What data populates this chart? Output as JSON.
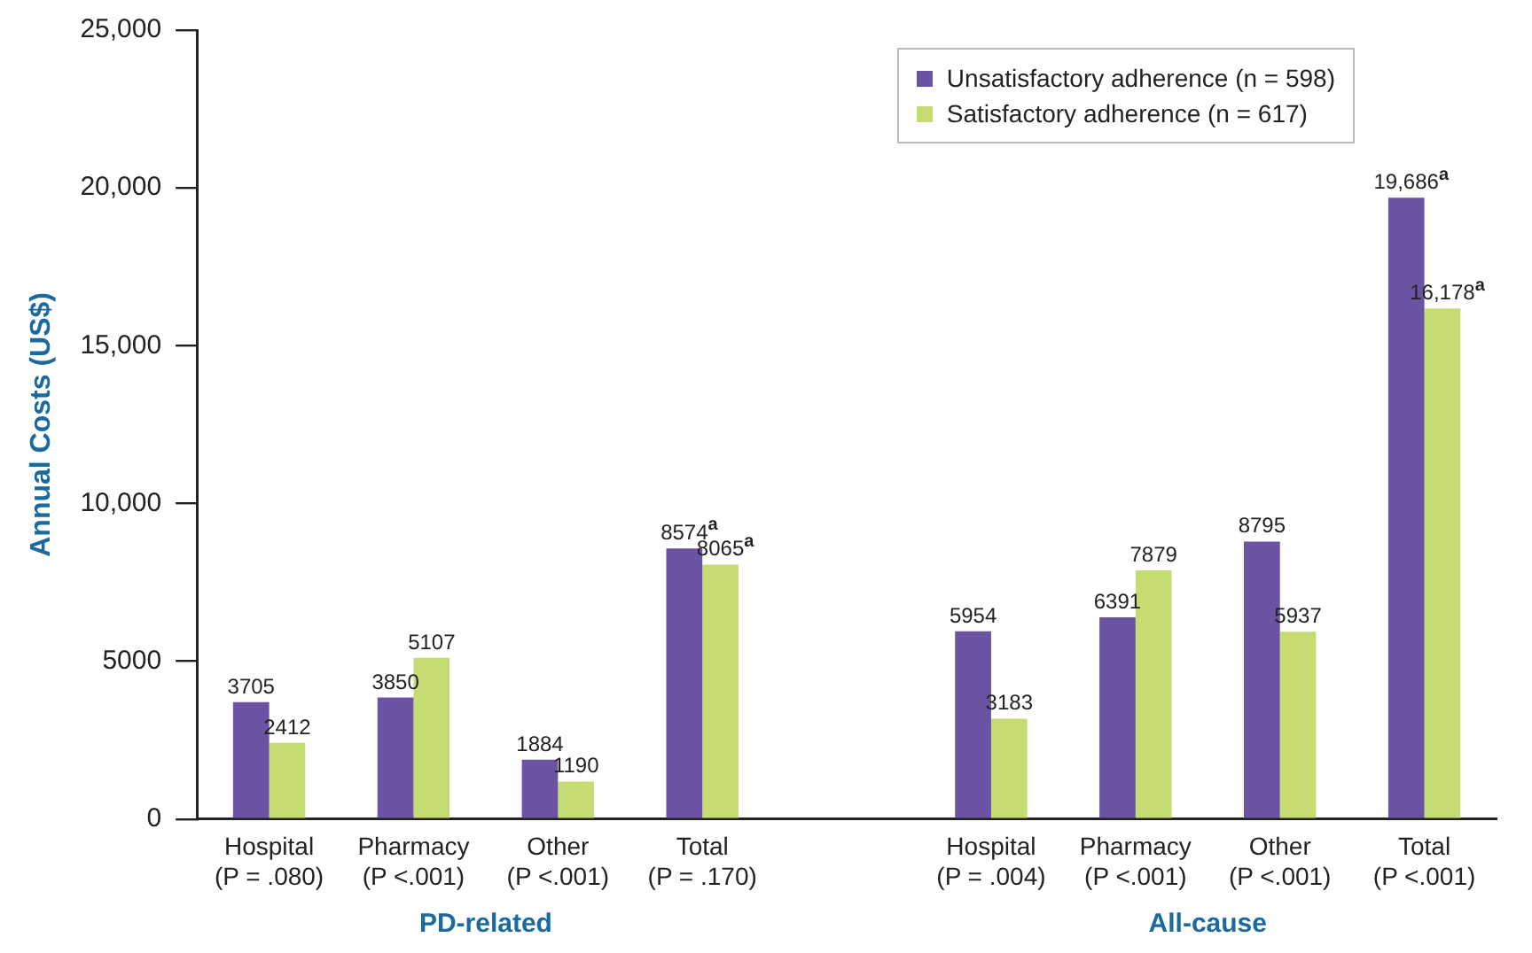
{
  "chart_data": {
    "type": "bar",
    "ylabel": "Annual Costs (US$)",
    "categories": [
      "Hospital\n(P = .080)",
      "Pharmacy\n(P <.001)",
      "Other\n(P <.001)",
      "Total\n(P = .170)",
      null,
      "Hospital\n(P = .004)",
      "Pharmacy\n(P <.001)",
      "Other\n(P <.001)",
      "Total\n(P <.001)"
    ],
    "series": [
      {
        "name": "Unsatisfactory adherence (n = 598)",
        "color": "#6b52a3",
        "values": [
          3705,
          3850,
          1884,
          8574,
          null,
          5954,
          6391,
          8795,
          19686
        ],
        "value_labels": [
          "3705",
          "3850",
          "1884",
          "8574$^{a}$",
          null,
          "5954",
          "6391",
          "8795",
          "19,686$^{a}$"
        ]
      },
      {
        "name": "Satisfactory adherence (n = 617)",
        "color": "#c5dc72",
        "values": [
          2412,
          5107,
          1190,
          8065,
          null,
          3183,
          7879,
          5937,
          16178
        ],
        "value_labels": [
          "2412",
          "5107",
          "1190",
          "8065$^{a}$",
          null,
          "3183",
          "7879",
          "5937",
          "16,178$^{a}$"
        ]
      }
    ],
    "ylim": [
      0,
      25000
    ],
    "yticks": [
      0,
      5000,
      {
        "value": 10000,
        "label": "10,000"
      },
      {
        "value": 15000,
        "label": "15,000"
      },
      {
        "value": 20000,
        "label": "20,000"
      },
      {
        "value": 25000,
        "label": "25,000"
      }
    ],
    "grid": false,
    "legend": "top right",
    "annotations": [
      "PD-related",
      "All-cause"
    ]
  }
}
